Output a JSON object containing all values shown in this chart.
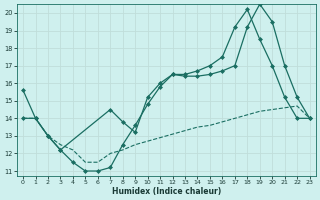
{
  "xlabel": "Humidex (Indice chaleur)",
  "background_color": "#cff0ee",
  "grid_color": "#c0deda",
  "line_color": "#1a6e62",
  "xlim": [
    -0.5,
    23.5
  ],
  "ylim": [
    10.7,
    20.5
  ],
  "yticks": [
    11,
    12,
    13,
    14,
    15,
    16,
    17,
    18,
    19,
    20
  ],
  "xticks": [
    0,
    1,
    2,
    3,
    4,
    5,
    6,
    7,
    8,
    9,
    10,
    11,
    12,
    13,
    14,
    15,
    16,
    17,
    18,
    19,
    20,
    21,
    22,
    23
  ],
  "series1_x": [
    0,
    1,
    2,
    3,
    4,
    5,
    6,
    7,
    8,
    9,
    10,
    11,
    12,
    13,
    14,
    15,
    16,
    17,
    18,
    19,
    20,
    21,
    22,
    23
  ],
  "series1_y": [
    15.6,
    14.0,
    13.0,
    12.2,
    11.5,
    11.0,
    11.0,
    11.2,
    12.5,
    13.6,
    14.8,
    15.8,
    16.5,
    16.4,
    16.4,
    16.5,
    16.7,
    17.0,
    19.2,
    20.5,
    19.5,
    17.0,
    15.2,
    14.0
  ],
  "series2_x": [
    0,
    1,
    2,
    3,
    4,
    5,
    6,
    7,
    8,
    9,
    10,
    11,
    12,
    13,
    14,
    15,
    16,
    17,
    18,
    19,
    20,
    21,
    22,
    23
  ],
  "series2_y": [
    14.0,
    14.0,
    13.0,
    12.5,
    12.2,
    11.5,
    11.5,
    12.0,
    12.2,
    12.5,
    12.7,
    12.9,
    13.1,
    13.3,
    13.5,
    13.6,
    13.8,
    14.0,
    14.2,
    14.4,
    14.5,
    14.6,
    14.7,
    14.0
  ],
  "series3_x": [
    0,
    1,
    2,
    3,
    7,
    8,
    9,
    10,
    11,
    12,
    13,
    14,
    15,
    16,
    17,
    18,
    19,
    20,
    21,
    22,
    23
  ],
  "series3_y": [
    14.0,
    14.0,
    13.0,
    12.2,
    14.5,
    13.8,
    13.2,
    15.2,
    16.0,
    16.5,
    16.5,
    16.7,
    17.0,
    17.5,
    19.2,
    20.2,
    18.5,
    17.0,
    15.2,
    14.0,
    14.0
  ]
}
